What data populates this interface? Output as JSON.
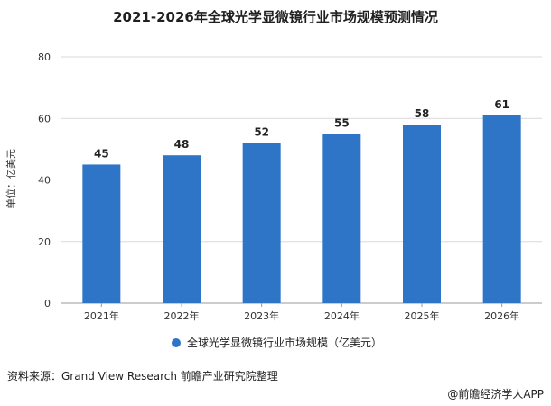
{
  "chart_data": {
    "type": "bar",
    "title": "2021-2026年全球光学显微镜行业市场规模预测情况",
    "ylabel": "单位：亿美元",
    "categories": [
      "2021年",
      "2022年",
      "2023年",
      "2024年",
      "2025年",
      "2026年"
    ],
    "series": [
      {
        "name": "全球光学显微镜行业市场规模（亿美元）",
        "values": [
          45,
          48,
          52,
          55,
          58,
          61
        ]
      }
    ],
    "ylim": [
      0,
      80
    ],
    "yticks": [
      0,
      20,
      40,
      60,
      80
    ],
    "grid": true,
    "legend_position": "bottom",
    "bar_color": "#2e75c8"
  },
  "footer": {
    "source": "资料来源：Grand View Research 前瞻产业研究院整理",
    "credit": "@前瞻经济学人APP"
  },
  "watermark": "前瞻产业研究院"
}
